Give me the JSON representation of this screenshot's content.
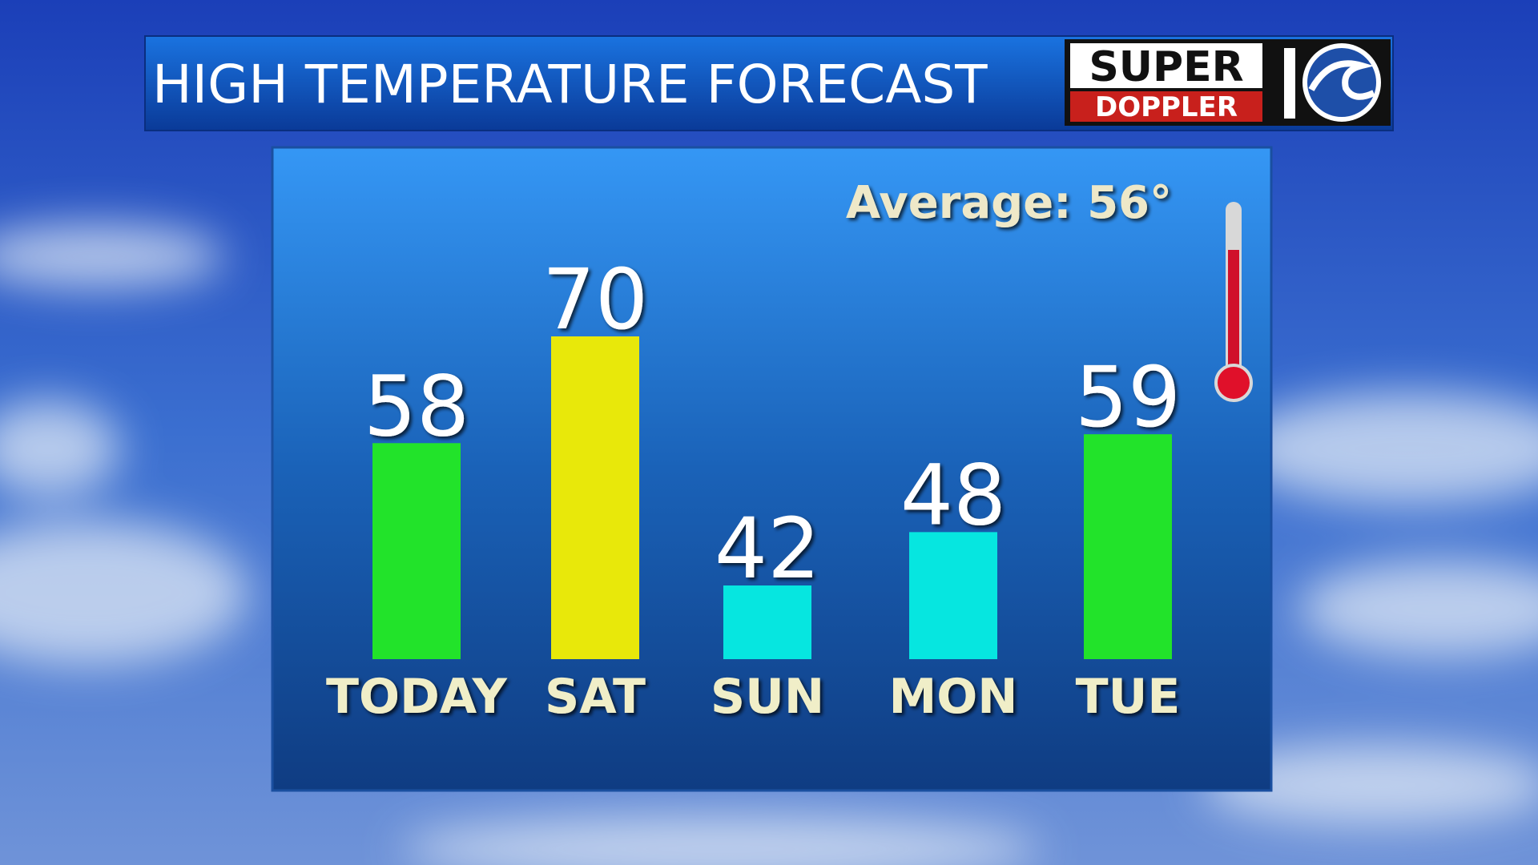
{
  "header": {
    "title": "HIGH TEMPERATURE FORECAST",
    "logo": {
      "line1": "SUPER",
      "line2": "DOPPLER"
    }
  },
  "chart_data": {
    "type": "bar",
    "annotation": "Average: 56°",
    "categories": [
      "TODAY",
      "SAT",
      "SUN",
      "MON",
      "TUE"
    ],
    "values": [
      58,
      70,
      42,
      48,
      59
    ],
    "colors": [
      "#22e32a",
      "#e8e80a",
      "#06e6e0",
      "#06e6e0",
      "#22e32a"
    ]
  }
}
